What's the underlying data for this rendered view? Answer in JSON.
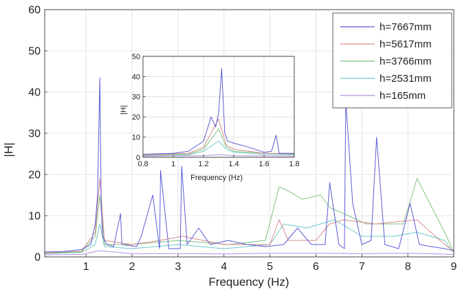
{
  "chart_data": [
    {
      "type": "line",
      "xlabel": "Frequency (Hz)",
      "ylabel": "|H|",
      "xlim": [
        0.1,
        9
      ],
      "ylim": [
        0,
        60
      ],
      "xticks": [
        "1",
        "2",
        "3",
        "4",
        "5",
        "6",
        "7",
        "8",
        "9"
      ],
      "yticks": [
        "0",
        "10",
        "20",
        "30",
        "40",
        "50",
        "60"
      ],
      "grid": true,
      "legend_position": "top-right",
      "series": [
        {
          "name": "h=7667mm",
          "color": "#5b5bd6",
          "x": [
            0.1,
            0.5,
            0.9,
            1.1,
            1.2,
            1.25,
            1.3,
            1.33,
            1.36,
            1.45,
            1.6,
            1.75,
            1.78,
            2.1,
            2.2,
            2.45,
            2.6,
            2.62,
            2.8,
            3.05,
            3.08,
            3.2,
            3.45,
            3.7,
            4.1,
            4.5,
            4.9,
            5.3,
            5.6,
            5.9,
            6.2,
            6.3,
            6.5,
            6.62,
            6.65,
            6.8,
            7.0,
            7.2,
            7.32,
            7.5,
            7.8,
            8.05,
            8.25,
            8.5,
            8.8,
            9.0
          ],
          "y": [
            1.2,
            1.3,
            1.8,
            3,
            8,
            15,
            43.5,
            12,
            5,
            3,
            2.5,
            10.5,
            3,
            2.5,
            5,
            15,
            2,
            21,
            2,
            2,
            22,
            3,
            7,
            3,
            4,
            3,
            2.5,
            3,
            7,
            3,
            3,
            18,
            3,
            2,
            38,
            13,
            3,
            4,
            29,
            3,
            2,
            13,
            3,
            2.5,
            2,
            1.5
          ]
        },
        {
          "name": "h=5617mm",
          "color": "#d68a8a",
          "x": [
            0.1,
            0.9,
            1.2,
            1.3,
            1.4,
            2.0,
            2.6,
            3.1,
            4.0,
            5.0,
            5.2,
            5.4,
            6.0,
            6.3,
            6.6,
            7.3,
            8.2,
            8.7,
            9.0
          ],
          "y": [
            1.0,
            1.4,
            6,
            19,
            4,
            3,
            4,
            5,
            3,
            3,
            9,
            4,
            4,
            8,
            9,
            8,
            9,
            4,
            1.3
          ]
        },
        {
          "name": "h=3766mm",
          "color": "#7fc27f",
          "x": [
            0.1,
            0.9,
            1.2,
            1.3,
            1.4,
            2.0,
            3.0,
            4.1,
            4.9,
            5.2,
            5.4,
            5.7,
            6.1,
            6.3,
            7.1,
            7.9,
            8.2,
            8.8,
            9.0
          ],
          "y": [
            0.9,
            1.2,
            5,
            15,
            3,
            3,
            4,
            3,
            4,
            17,
            16,
            14,
            15,
            12,
            8,
            8,
            19,
            6,
            1.2
          ]
        },
        {
          "name": "h=2531mm",
          "color": "#6fc7c7",
          "x": [
            0.1,
            0.9,
            1.2,
            1.3,
            1.4,
            2.0,
            3.0,
            4.0,
            5.0,
            5.3,
            5.8,
            6.4,
            7.0,
            7.7,
            8.2,
            8.8,
            9.0
          ],
          "y": [
            0.8,
            1.1,
            3,
            8,
            2.5,
            2,
            3,
            2,
            3,
            8,
            7,
            9,
            5,
            5,
            6,
            4,
            1.0
          ]
        },
        {
          "name": "h=165mm",
          "color": "#b08fe0",
          "x": [
            0.1,
            0.9,
            1.3,
            2.0,
            3.0,
            4.0,
            5.0,
            6.0,
            7.0,
            8.0,
            9.0
          ],
          "y": [
            0.5,
            0.6,
            1.5,
            0.8,
            0.8,
            0.7,
            0.9,
            0.9,
            0.8,
            0.9,
            0.6
          ]
        }
      ]
    },
    {
      "type": "line",
      "xlabel": "Frequency (Hz)",
      "ylabel": "|H|",
      "xlim": [
        0.8,
        1.8
      ],
      "ylim": [
        0,
        50
      ],
      "xticks": [
        "0.8",
        "1",
        "1.2",
        "1.4",
        "1.6",
        "1.8"
      ],
      "yticks": [
        "0",
        "10",
        "20",
        "30",
        "40",
        "50"
      ],
      "grid": true,
      "series": [
        {
          "name": "h=7667mm",
          "color": "#5b5bd6",
          "x": [
            0.8,
            1.0,
            1.1,
            1.2,
            1.25,
            1.28,
            1.3,
            1.32,
            1.34,
            1.36,
            1.4,
            1.5,
            1.6,
            1.65,
            1.68,
            1.7,
            1.8
          ],
          "y": [
            1.5,
            2,
            3,
            8,
            20,
            15,
            22,
            44,
            12,
            8,
            7,
            5,
            2.5,
            3,
            11,
            2,
            2
          ]
        },
        {
          "name": "h=5617mm",
          "color": "#d68a8a",
          "x": [
            0.8,
            1.1,
            1.2,
            1.3,
            1.35,
            1.4,
            1.6,
            1.8
          ],
          "y": [
            1.2,
            2,
            5,
            19,
            6,
            4,
            2,
            1.8
          ]
        },
        {
          "name": "h=3766mm",
          "color": "#7fc27f",
          "x": [
            0.8,
            1.1,
            1.2,
            1.3,
            1.35,
            1.4,
            1.6,
            1.8
          ],
          "y": [
            1.0,
            1.5,
            4,
            14,
            5,
            3,
            2,
            1.5
          ]
        },
        {
          "name": "h=2531mm",
          "color": "#6fc7c7",
          "x": [
            0.8,
            1.1,
            1.2,
            1.3,
            1.35,
            1.4,
            1.6,
            1.8
          ],
          "y": [
            0.9,
            1.3,
            3,
            8,
            4,
            2.5,
            1.5,
            1.2
          ]
        },
        {
          "name": "h=165mm",
          "color": "#b08fe0",
          "x": [
            0.8,
            1.2,
            1.3,
            1.4,
            1.8
          ],
          "y": [
            0.5,
            0.8,
            1.3,
            0.8,
            0.6
          ]
        }
      ]
    }
  ]
}
